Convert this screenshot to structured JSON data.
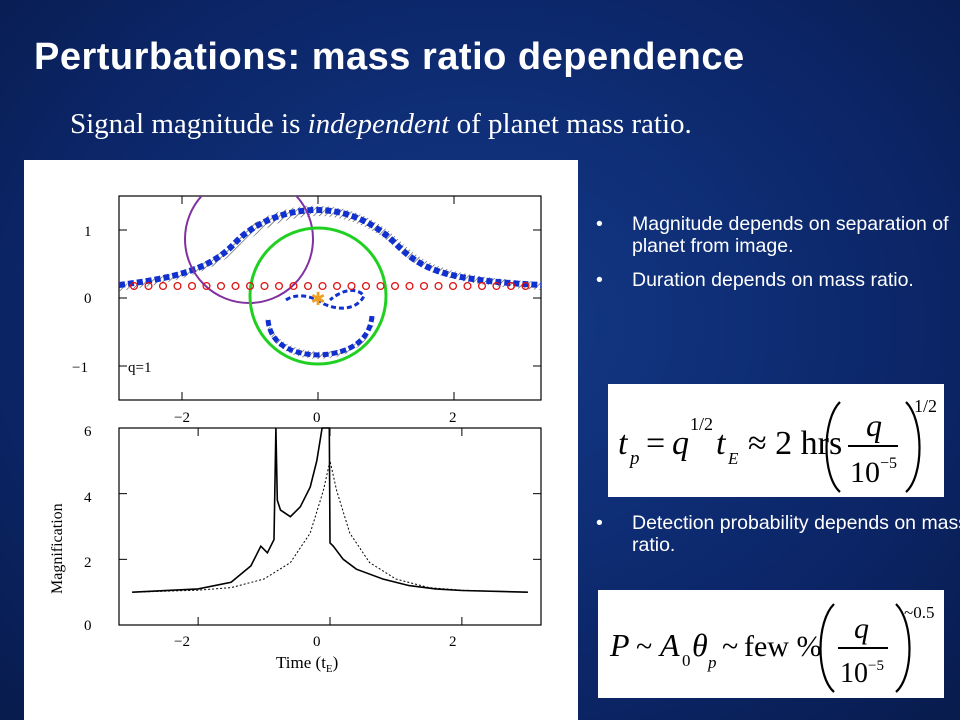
{
  "slide": {
    "title": "Perturbations: mass ratio dependence",
    "subtitle_pre": "Signal magnitude is ",
    "subtitle_em": "independent",
    "subtitle_post": " of planet mass ratio."
  },
  "bullets": {
    "marker": "•",
    "items": [
      "Magnitude depends on separation of planet from image.",
      "Duration depends on mass ratio.",
      "Detection probability depends on mass ratio."
    ]
  },
  "equations": {
    "eq1": {
      "t": "t",
      "p": "p",
      "eq": "=",
      "q": "q",
      "half": "1/2",
      "tE_t": "t",
      "tE_sub": "E",
      "approx": "≈ 2 hrs",
      "num": "q",
      "den_base": "10",
      "den_exp": "−5",
      "exp": "1/2"
    },
    "eq2": {
      "P": "P",
      "tilde1": "~",
      "A": "A",
      "A_sub": "0",
      "theta": "θ",
      "theta_sub": "p",
      "tilde2": "~",
      "few": "few %",
      "num": "q",
      "den_base": "10",
      "den_exp": "−5",
      "exp": "~0.5"
    }
  },
  "figure": {
    "top_panel": {
      "y_ticks": [
        "1",
        "0",
        "−1"
      ],
      "x_ticks": [
        "−2",
        "0",
        "2"
      ],
      "label": "q=1",
      "star_color": "#f0a020",
      "trajectory_color": "#e01010",
      "track_color": "#1030d0",
      "circle1_color": "#20d020",
      "circle2_color": "#8030a0"
    },
    "bottom_panel": {
      "ylabel": "Magnification",
      "xlabel_main": "Time (t",
      "xlabel_sub": "E",
      "xlabel_close": ")",
      "y_ticks": [
        "6",
        "4",
        "2",
        "0"
      ],
      "x_ticks": [
        "−2",
        "0",
        "2"
      ]
    }
  },
  "chart_data": {
    "type": "line",
    "title": "",
    "xlabel": "Time (tE)",
    "ylabel": "Magnification",
    "xlim": [
      -3.2,
      3.2
    ],
    "ylim": [
      0,
      6
    ],
    "series": [
      {
        "x": [
          -3.0,
          -2.0,
          -1.5,
          -1.2,
          -1.05,
          -0.95,
          -0.85,
          -0.82,
          -0.8,
          -0.75,
          -0.6,
          -0.45,
          -0.3,
          -0.2,
          -0.12,
          -0.08,
          -0.05,
          -0.01,
          0.0,
          0.05,
          0.2,
          0.4,
          0.8,
          1.2,
          1.6,
          2.0,
          3.0
        ],
        "y": [
          1.0,
          1.1,
          1.3,
          1.8,
          2.4,
          2.2,
          2.6,
          6.0,
          3.8,
          3.5,
          3.3,
          3.6,
          4.2,
          5.0,
          6.0,
          6.0,
          6.0,
          6.0,
          2.5,
          2.4,
          2.0,
          1.7,
          1.4,
          1.2,
          1.1,
          1.05,
          1.0
        ]
      },
      {
        "x": [
          -3.0,
          -2.0,
          -1.5,
          -1.0,
          -0.6,
          -0.3,
          -0.1,
          0.0,
          0.1,
          0.3,
          0.6,
          1.0,
          1.5,
          2.0,
          3.0
        ],
        "y": [
          1.0,
          1.06,
          1.14,
          1.4,
          1.9,
          2.8,
          4.1,
          5.0,
          4.1,
          2.8,
          1.9,
          1.4,
          1.14,
          1.06,
          1.0
        ]
      }
    ]
  }
}
